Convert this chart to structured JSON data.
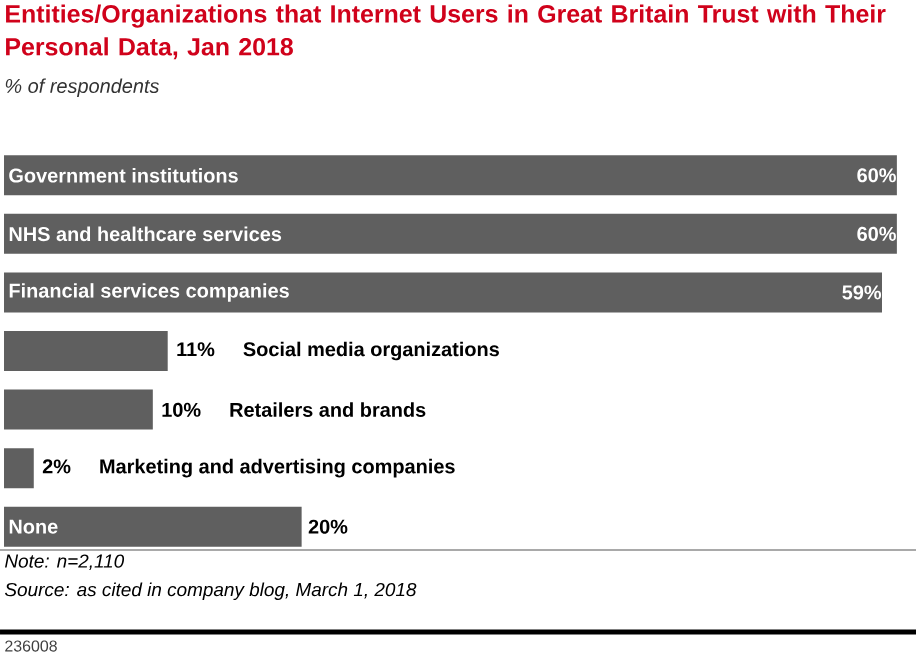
{
  "chart_data": {
    "type": "bar",
    "orientation": "horizontal",
    "title": "Entities/Organizations that Internet Users in Great Britain Trust with Their Personal Data, Jan 2018",
    "subtitle": "% of respondents",
    "categories": [
      "Government institutions",
      "NHS and healthcare services",
      "Financial services companies",
      "Social media organizations",
      "Retailers and brands",
      "Marketing and advertising companies",
      "None"
    ],
    "values": [
      60,
      60,
      59,
      11,
      10,
      2,
      20
    ],
    "value_labels": [
      "60%",
      "60%",
      "59%",
      "11%",
      "10%",
      "2%",
      "20%"
    ],
    "color": "#5f5f5f",
    "annotations": [
      "Note: n=2,110",
      "Source: as cited in company blog, March 1, 2018",
      "236008"
    ]
  }
}
